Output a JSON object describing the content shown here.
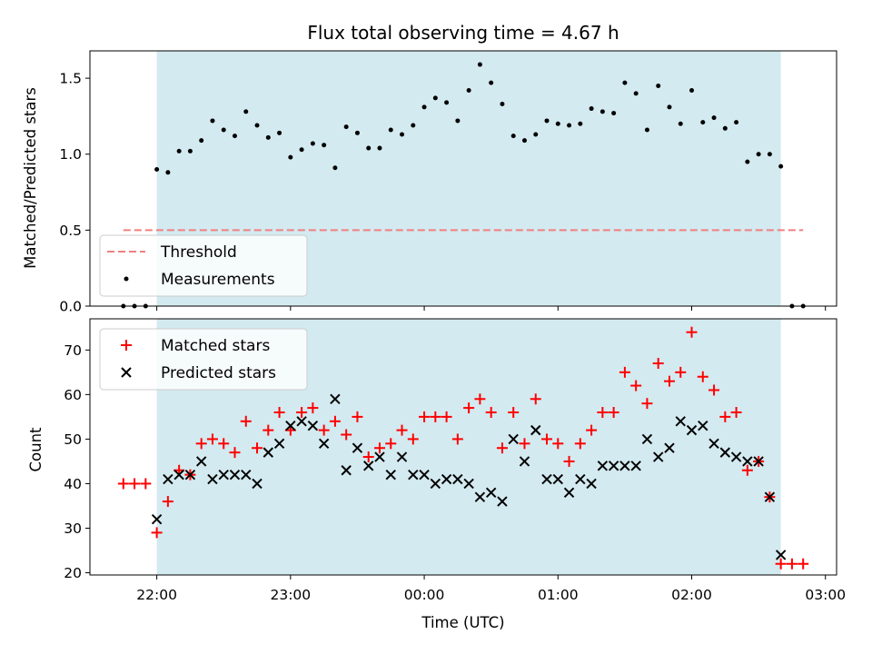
{
  "colors": {
    "shade": "#d3eaf0",
    "threshold": "#f08080",
    "measurement": "#000000",
    "matched": "#ff0000",
    "predicted": "#000000"
  },
  "chart_data": [
    {
      "type": "scatter",
      "title": "Flux total observing time = 4.67 h",
      "xlabel": "",
      "ylabel": "Matched/Predicted stars",
      "xlim": [
        "21:30",
        "03:05"
      ],
      "ylim": [
        0,
        1.68
      ],
      "yticks": [
        0.0,
        0.5,
        1.0,
        1.5
      ],
      "ytick_labels": [
        "0.0",
        "0.5",
        "1.0",
        "1.5"
      ],
      "shaded_span": [
        "22:00",
        "02:40"
      ],
      "legend": "lower-left",
      "threshold": {
        "name": "Threshold",
        "value": 0.5,
        "x": [
          "21:45",
          "02:50"
        ],
        "style": "dashed"
      },
      "series": [
        {
          "name": "Measurements",
          "x": [
            "21:45",
            "21:50",
            "21:55",
            "22:00",
            "22:05",
            "22:10",
            "22:15",
            "22:20",
            "22:25",
            "22:30",
            "22:35",
            "22:40",
            "22:45",
            "22:50",
            "22:55",
            "23:00",
            "23:05",
            "23:10",
            "23:15",
            "23:20",
            "23:25",
            "23:30",
            "23:35",
            "23:40",
            "23:45",
            "23:50",
            "23:55",
            "00:00",
            "00:05",
            "00:10",
            "00:15",
            "00:20",
            "00:25",
            "00:30",
            "00:35",
            "00:40",
            "00:45",
            "00:50",
            "00:55",
            "01:00",
            "01:05",
            "01:10",
            "01:15",
            "01:20",
            "01:25",
            "01:30",
            "01:35",
            "01:40",
            "01:45",
            "01:50",
            "01:55",
            "02:00",
            "02:05",
            "02:10",
            "02:15",
            "02:20",
            "02:25",
            "02:30",
            "02:35",
            "02:40",
            "02:45",
            "02:50"
          ],
          "y": [
            0,
            0,
            0,
            0.9,
            0.88,
            1.02,
            1.02,
            1.09,
            1.22,
            1.16,
            1.12,
            1.28,
            1.19,
            1.11,
            1.14,
            0.98,
            1.03,
            1.07,
            1.06,
            0.91,
            1.18,
            1.14,
            1.04,
            1.04,
            1.16,
            1.13,
            1.19,
            1.31,
            1.37,
            1.34,
            1.22,
            1.42,
            1.59,
            1.47,
            1.33,
            1.12,
            1.09,
            1.13,
            1.22,
            1.2,
            1.19,
            1.2,
            1.3,
            1.28,
            1.27,
            1.47,
            1.4,
            1.16,
            1.45,
            1.31,
            1.2,
            1.42,
            1.21,
            1.24,
            1.17,
            1.21,
            0.95,
            1.0,
            1.0,
            0.92,
            0,
            0
          ]
        }
      ]
    },
    {
      "type": "scatter",
      "xlabel": "Time (UTC)",
      "ylabel": "Count",
      "xlim": [
        "21:30",
        "03:05"
      ],
      "ylim": [
        19.5,
        77
      ],
      "yticks": [
        20,
        30,
        40,
        50,
        60,
        70
      ],
      "ytick_labels": [
        "20",
        "30",
        "40",
        "50",
        "60",
        "70"
      ],
      "xticks": [
        "22:00",
        "23:00",
        "00:00",
        "01:00",
        "02:00",
        "03:00"
      ],
      "shaded_span": [
        "22:00",
        "02:40"
      ],
      "legend": "top-left",
      "series": [
        {
          "name": "Matched stars",
          "marker": "+",
          "x": [
            "21:45",
            "21:50",
            "21:55",
            "22:00",
            "22:05",
            "22:10",
            "22:15",
            "22:20",
            "22:25",
            "22:30",
            "22:35",
            "22:40",
            "22:45",
            "22:50",
            "22:55",
            "23:00",
            "23:05",
            "23:10",
            "23:15",
            "23:20",
            "23:25",
            "23:30",
            "23:35",
            "23:40",
            "23:45",
            "23:50",
            "23:55",
            "00:00",
            "00:05",
            "00:10",
            "00:15",
            "00:20",
            "00:25",
            "00:30",
            "00:35",
            "00:40",
            "00:45",
            "00:50",
            "00:55",
            "01:00",
            "01:05",
            "01:10",
            "01:15",
            "01:20",
            "01:25",
            "01:30",
            "01:35",
            "01:40",
            "01:45",
            "01:50",
            "01:55",
            "02:00",
            "02:05",
            "02:10",
            "02:15",
            "02:20",
            "02:25",
            "02:30",
            "02:35",
            "02:40",
            "02:45",
            "02:50"
          ],
          "y": [
            40,
            40,
            40,
            29,
            36,
            43,
            42,
            49,
            50,
            49,
            47,
            54,
            48,
            52,
            56,
            52,
            56,
            57,
            52,
            54,
            51,
            55,
            46,
            48,
            49,
            52,
            50,
            55,
            55,
            55,
            50,
            57,
            59,
            56,
            48,
            56,
            49,
            59,
            50,
            49,
            45,
            49,
            52,
            56,
            56,
            65,
            62,
            58,
            67,
            63,
            65,
            74,
            64,
            61,
            55,
            56,
            43,
            45,
            37,
            22,
            22,
            22
          ]
        },
        {
          "name": "Predicted stars",
          "marker": "x",
          "x": [
            "22:00",
            "22:05",
            "22:10",
            "22:15",
            "22:20",
            "22:25",
            "22:30",
            "22:35",
            "22:40",
            "22:45",
            "22:50",
            "22:55",
            "23:00",
            "23:05",
            "23:10",
            "23:15",
            "23:20",
            "23:25",
            "23:30",
            "23:35",
            "23:40",
            "23:45",
            "23:50",
            "23:55",
            "00:00",
            "00:05",
            "00:10",
            "00:15",
            "00:20",
            "00:25",
            "00:30",
            "00:35",
            "00:40",
            "00:45",
            "00:50",
            "00:55",
            "01:00",
            "01:05",
            "01:10",
            "01:15",
            "01:20",
            "01:25",
            "01:30",
            "01:35",
            "01:40",
            "01:45",
            "01:50",
            "01:55",
            "02:00",
            "02:05",
            "02:10",
            "02:15",
            "02:20",
            "02:25",
            "02:30",
            "02:35",
            "02:40"
          ],
          "y": [
            32,
            41,
            42,
            42,
            45,
            41,
            42,
            42,
            42,
            40,
            47,
            49,
            53,
            54,
            53,
            49,
            59,
            43,
            48,
            44,
            46,
            42,
            46,
            42,
            42,
            40,
            41,
            41,
            40,
            37,
            38,
            36,
            50,
            45,
            52,
            41,
            41,
            38,
            41,
            40,
            44,
            44,
            44,
            44,
            50,
            46,
            48,
            54,
            52,
            53,
            49,
            47,
            46,
            45,
            45,
            37,
            24
          ]
        }
      ]
    }
  ]
}
